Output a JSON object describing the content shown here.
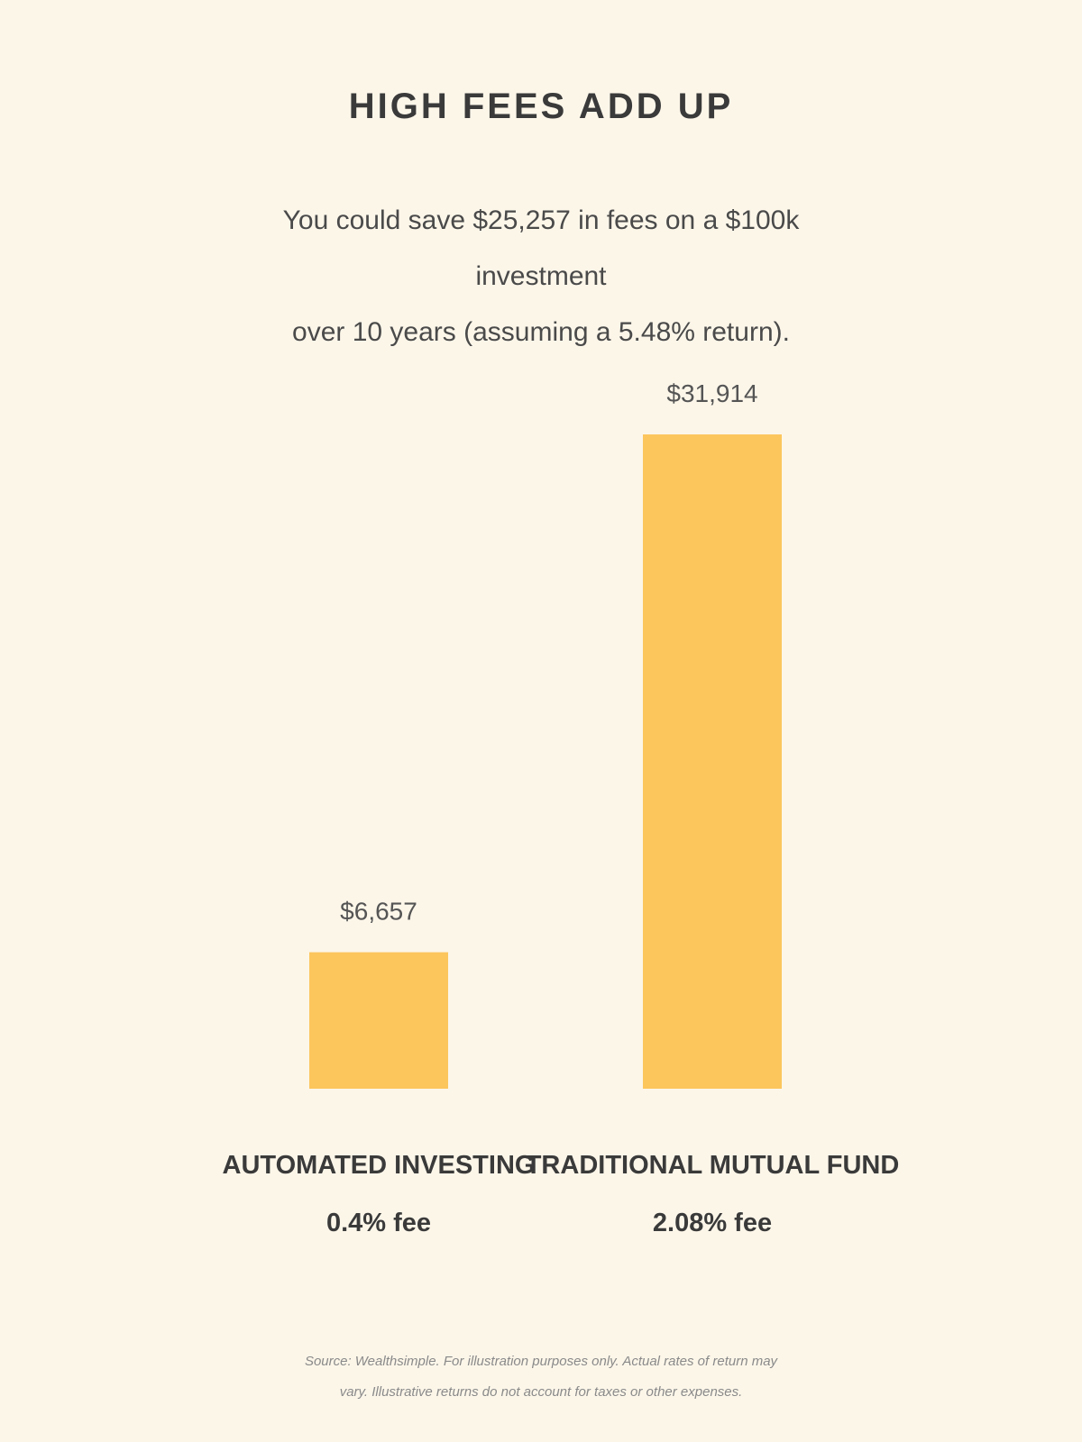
{
  "chart_data": {
    "type": "bar",
    "title": "HIGH FEES ADD UP",
    "subtitle_lines": [
      "You could save $25,257 in fees on a $100k investment",
      "over 10 years (assuming a 5.48% return)."
    ],
    "categories": [
      "AUTOMATED INVESTING",
      "TRADITIONAL MUTUAL FUND"
    ],
    "category_sublabels": [
      "0.4% fee",
      "2.08% fee"
    ],
    "values": [
      6657,
      31914
    ],
    "value_labels": [
      "$6,657",
      "$31,914"
    ],
    "bar_color": "#fcc65d",
    "ylim": [
      0,
      31914
    ],
    "grid": false,
    "xlabel": "",
    "ylabel": ""
  },
  "footer_lines": [
    "Source: Wealthsimple. For illustration purposes only. Actual rates of return may",
    "vary. Illustrative returns do not account for taxes or other expenses."
  ]
}
